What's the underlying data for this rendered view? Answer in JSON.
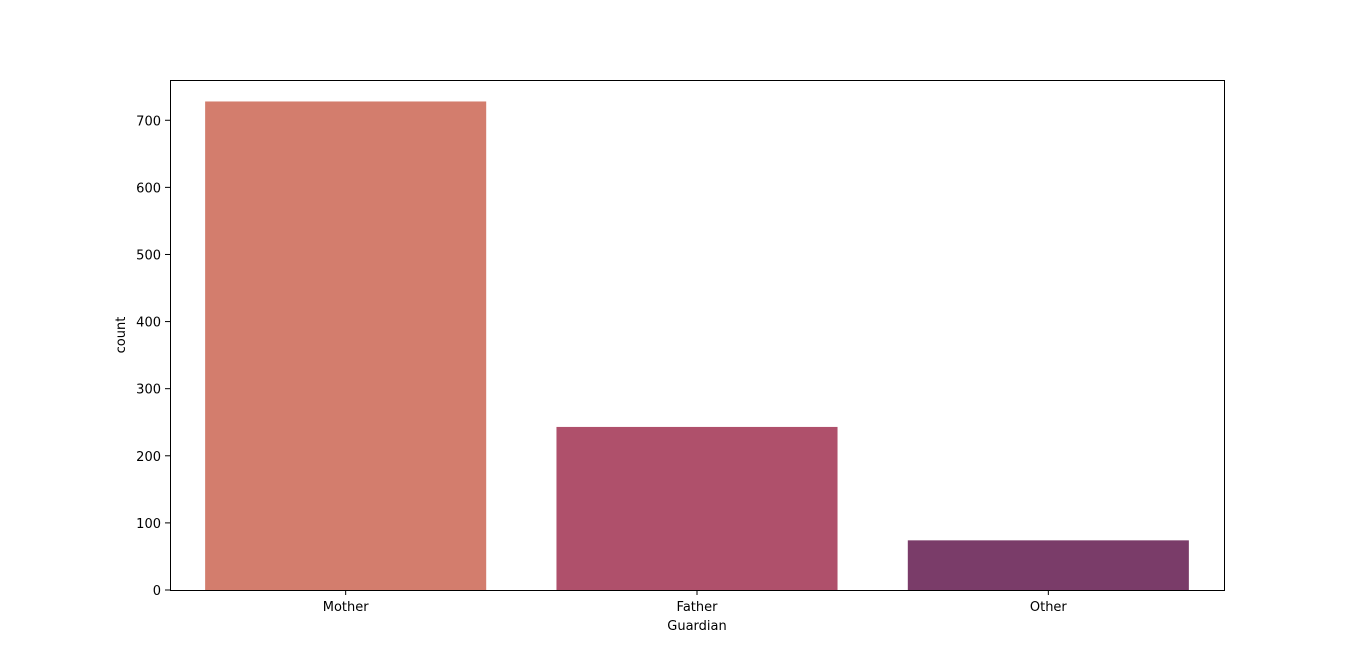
{
  "chart_data": {
    "type": "bar",
    "categories": [
      "Mother",
      "Father",
      "Other"
    ],
    "values": [
      728,
      243,
      74
    ],
    "colors": [
      "#d37d6d",
      "#af506b",
      "#7a3c69"
    ],
    "xlabel": "Guardian",
    "ylabel": "count",
    "ylim": [
      0,
      760
    ],
    "yticks": [
      0,
      100,
      200,
      300,
      400,
      500,
      600,
      700
    ],
    "grid": false,
    "legend": "none"
  }
}
